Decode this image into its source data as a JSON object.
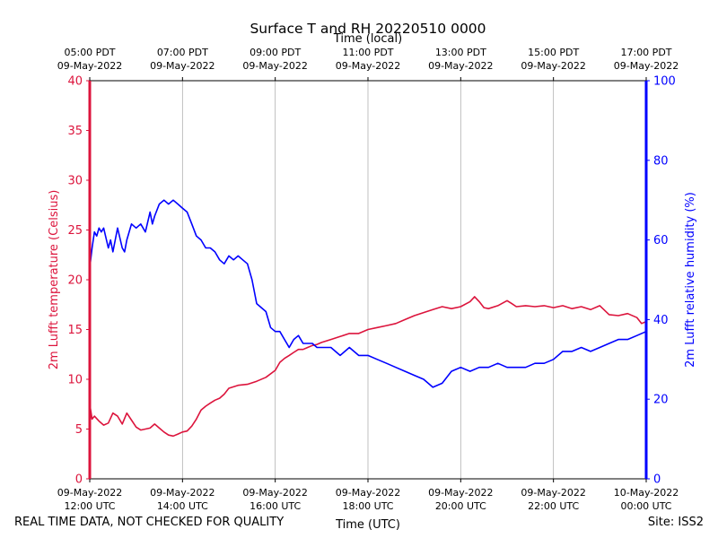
{
  "chart_data": {
    "type": "line",
    "title": "Surface T and RH 20220510 0000",
    "top_xlabel": "Time (local)",
    "bottom_xlabel": "Time (UTC)",
    "ylabel_left": "2m Lufft temperature (Celsius)",
    "ylabel_right": "2m Lufft relative humidity (%)",
    "ylim_left": [
      0,
      40
    ],
    "ylim_right": [
      0,
      100
    ],
    "yticks_left": [
      0,
      5,
      10,
      15,
      20,
      25,
      30,
      35,
      40
    ],
    "yticks_right": [
      0,
      20,
      40,
      60,
      80,
      100
    ],
    "xlim": [
      12,
      24
    ],
    "xticks_hours": [
      12,
      14,
      16,
      18,
      20,
      22,
      24
    ],
    "bottom_tick_labels": [
      {
        "date": "09-May-2022",
        "time": "12:00 UTC"
      },
      {
        "date": "09-May-2022",
        "time": "14:00 UTC"
      },
      {
        "date": "09-May-2022",
        "time": "16:00 UTC"
      },
      {
        "date": "09-May-2022",
        "time": "18:00 UTC"
      },
      {
        "date": "09-May-2022",
        "time": "20:00 UTC"
      },
      {
        "date": "09-May-2022",
        "time": "22:00 UTC"
      },
      {
        "date": "10-May-2022",
        "time": "00:00 UTC"
      }
    ],
    "top_tick_labels": [
      {
        "time": "05:00 PDT",
        "date": "09-May-2022"
      },
      {
        "time": "07:00 PDT",
        "date": "09-May-2022"
      },
      {
        "time": "09:00 PDT",
        "date": "09-May-2022"
      },
      {
        "time": "11:00 PDT",
        "date": "09-May-2022"
      },
      {
        "time": "13:00 PDT",
        "date": "09-May-2022"
      },
      {
        "time": "15:00 PDT",
        "date": "09-May-2022"
      },
      {
        "time": "17:00 PDT",
        "date": "09-May-2022"
      }
    ],
    "grid": "vertical",
    "series": [
      {
        "name": "2m Lufft temperature",
        "axis": "left",
        "color": "#dc143c",
        "x": [
          12.0,
          12.05,
          12.1,
          12.2,
          12.3,
          12.4,
          12.5,
          12.6,
          12.7,
          12.8,
          12.9,
          13.0,
          13.1,
          13.2,
          13.3,
          13.4,
          13.5,
          13.6,
          13.7,
          13.8,
          13.9,
          14.0,
          14.1,
          14.2,
          14.3,
          14.4,
          14.5,
          14.6,
          14.7,
          14.8,
          14.9,
          15.0,
          15.2,
          15.4,
          15.6,
          15.8,
          16.0,
          16.1,
          16.2,
          16.3,
          16.4,
          16.5,
          16.6,
          16.7,
          16.8,
          16.9,
          17.0,
          17.2,
          17.4,
          17.6,
          17.8,
          18.0,
          18.2,
          18.4,
          18.6,
          18.8,
          19.0,
          19.2,
          19.4,
          19.6,
          19.8,
          20.0,
          20.2,
          20.3,
          20.4,
          20.5,
          20.6,
          20.8,
          21.0,
          21.1,
          21.2,
          21.4,
          21.6,
          21.8,
          22.0,
          22.2,
          22.4,
          22.6,
          22.8,
          23.0,
          23.2,
          23.4,
          23.6,
          23.8,
          23.9,
          24.0
        ],
        "values": [
          7.5,
          6.0,
          6.3,
          5.8,
          5.4,
          5.6,
          6.6,
          6.3,
          5.5,
          6.6,
          5.9,
          5.2,
          4.9,
          5.0,
          5.1,
          5.5,
          5.1,
          4.7,
          4.4,
          4.3,
          4.5,
          4.7,
          4.8,
          5.3,
          6.0,
          6.9,
          7.3,
          7.6,
          7.9,
          8.1,
          8.5,
          9.1,
          9.4,
          9.5,
          9.8,
          10.2,
          10.9,
          11.7,
          12.1,
          12.4,
          12.7,
          13.0,
          13.0,
          13.2,
          13.4,
          13.5,
          13.7,
          14.0,
          14.3,
          14.6,
          14.6,
          15.0,
          15.2,
          15.4,
          15.6,
          16.0,
          16.4,
          16.7,
          17.0,
          17.3,
          17.1,
          17.3,
          17.8,
          18.3,
          17.8,
          17.2,
          17.1,
          17.4,
          17.9,
          17.6,
          17.3,
          17.4,
          17.3,
          17.4,
          17.2,
          17.4,
          17.1,
          17.3,
          17.0,
          17.4,
          16.5,
          16.4,
          16.6,
          16.2,
          15.6,
          15.8
        ]
      },
      {
        "name": "2m Lufft relative humidity",
        "axis": "right",
        "color": "#0000ff",
        "x": [
          12.0,
          12.05,
          12.1,
          12.15,
          12.2,
          12.25,
          12.3,
          12.4,
          12.45,
          12.5,
          12.6,
          12.7,
          12.75,
          12.8,
          12.9,
          13.0,
          13.1,
          13.2,
          13.3,
          13.35,
          13.4,
          13.5,
          13.6,
          13.7,
          13.8,
          13.9,
          14.0,
          14.1,
          14.2,
          14.3,
          14.4,
          14.5,
          14.6,
          14.7,
          14.8,
          14.9,
          15.0,
          15.1,
          15.2,
          15.3,
          15.4,
          15.5,
          15.6,
          15.7,
          15.8,
          15.85,
          15.9,
          16.0,
          16.1,
          16.2,
          16.3,
          16.4,
          16.5,
          16.6,
          16.7,
          16.8,
          16.9,
          17.0,
          17.2,
          17.4,
          17.6,
          17.8,
          18.0,
          18.2,
          18.4,
          18.6,
          18.8,
          19.0,
          19.2,
          19.4,
          19.6,
          19.8,
          20.0,
          20.2,
          20.4,
          20.6,
          20.8,
          21.0,
          21.2,
          21.4,
          21.6,
          21.8,
          22.0,
          22.2,
          22.4,
          22.6,
          22.8,
          23.0,
          23.2,
          23.4,
          23.6,
          23.8,
          24.0
        ],
        "values": [
          53,
          58,
          62,
          61,
          63,
          62,
          63,
          58,
          60,
          57,
          63,
          58,
          57,
          60,
          64,
          63,
          64,
          62,
          67,
          64,
          66,
          69,
          70,
          69,
          70,
          69,
          68,
          67,
          64,
          61,
          60,
          58,
          58,
          57,
          55,
          54,
          56,
          55,
          56,
          55,
          54,
          50,
          44,
          43,
          42,
          40,
          38,
          37,
          37,
          35,
          33,
          35,
          36,
          34,
          34,
          34,
          33,
          33,
          33,
          31,
          33,
          31,
          31,
          30,
          29,
          28,
          27,
          26,
          25,
          23,
          24,
          27,
          28,
          27,
          28,
          28,
          29,
          28,
          28,
          28,
          29,
          29,
          30,
          32,
          32,
          33,
          32,
          33,
          34,
          35,
          35,
          36,
          37
        ]
      }
    ]
  },
  "footer": {
    "left_note": "REAL TIME DATA, NOT CHECKED FOR QUALITY",
    "site": "Site: ISS2"
  }
}
